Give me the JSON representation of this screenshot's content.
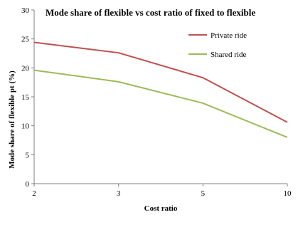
{
  "chart_data": {
    "type": "line",
    "title": "Mode share of flexible vs cost ratio of fixed to flexible",
    "xlabel": "Cost ratio",
    "ylabel": "Mode share of flexible pt (%)",
    "categories": [
      "2",
      "3",
      "5",
      "10"
    ],
    "ylim": [
      0,
      30
    ],
    "yticks": [
      0,
      5,
      10,
      15,
      20,
      25,
      30
    ],
    "grid": false,
    "legend_position": "top-right",
    "series": [
      {
        "name": "Private ride",
        "color": "#c0504d",
        "values": [
          24.4,
          22.6,
          18.3,
          10.6
        ]
      },
      {
        "name": "Shared ride",
        "color": "#9bbb59",
        "values": [
          19.6,
          17.6,
          13.9,
          8.0
        ]
      }
    ]
  }
}
